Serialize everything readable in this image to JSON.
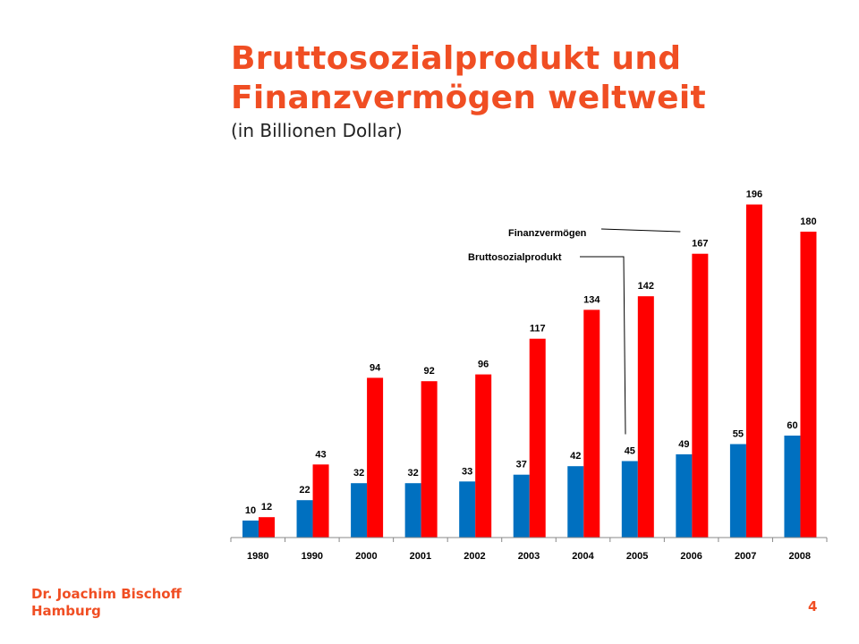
{
  "slide": {
    "title_line1": "Bruttosozialprodukt und",
    "title_line2": "Finanzvermögen weltweit",
    "subtitle": "(in Billionen Dollar)",
    "author_line1": "Dr. Joachim Bischoff",
    "author_line2": "Hamburg",
    "page_number": "4"
  },
  "chart_data": {
    "type": "bar",
    "title": "",
    "xlabel": "",
    "ylabel": "",
    "ylim": [
      0,
      200
    ],
    "grid": false,
    "categories": [
      "1980",
      "1990",
      "2000",
      "2001",
      "2002",
      "2003",
      "2004",
      "2005",
      "2006",
      "2007",
      "2008"
    ],
    "series": [
      {
        "name": "Bruttosozialprodukt",
        "color": "#0070c0",
        "values": [
          10,
          22,
          32,
          32,
          33,
          37,
          42,
          45,
          49,
          55,
          60
        ]
      },
      {
        "name": "Finanzvermögen",
        "color": "#ff0000",
        "values": [
          12,
          43,
          94,
          92,
          96,
          117,
          134,
          142,
          167,
          196,
          180
        ]
      }
    ],
    "callouts": [
      {
        "series": 1,
        "label": "Finanzvermögen",
        "category": "2006"
      },
      {
        "series": 0,
        "label": "Bruttosozialprodukt",
        "category": "2005"
      }
    ]
  }
}
